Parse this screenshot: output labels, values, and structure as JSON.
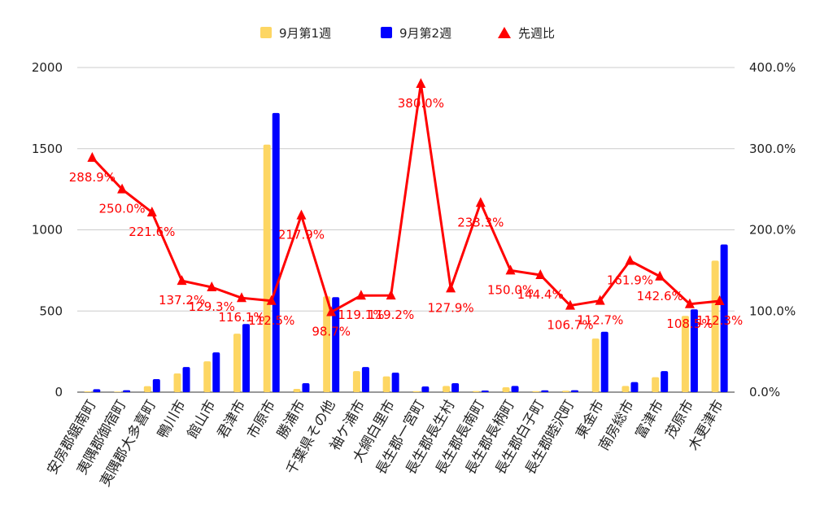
{
  "chart_data": {
    "type": "bar",
    "title": "",
    "xlabel": "",
    "ylabel": "",
    "y2label": "",
    "ylim": [
      0,
      2000
    ],
    "y2lim": [
      0,
      400
    ],
    "yticks": [
      "0",
      "500",
      "1000",
      "1500",
      "2000"
    ],
    "y2ticks": [
      "0.0%",
      "100.0%",
      "200.0%",
      "300.0%",
      "400.0%"
    ],
    "grid": true,
    "legend_position": "top",
    "categories": [
      "安房郡鋸南町",
      "夷隅郡御宿町",
      "夷隅郡大多喜町",
      "鴨川市",
      "館山市",
      "君津市",
      "市原市",
      "勝浦市",
      "千葉県その他",
      "袖ケ浦市",
      "大網白里市",
      "長生郡一宮町",
      "長生郡長生村",
      "長生郡長南町",
      "長生郡長柄町",
      "長生郡白子町",
      "長生郡睦沢町",
      "東金市",
      "南房総市",
      "富津市",
      "茂原市",
      "木更津市"
    ],
    "series": [
      {
        "name": "9月第1週",
        "kind": "bar",
        "axis": "left",
        "color": "#fdd663",
        "values": [
          5,
          4,
          37,
          115,
          190,
          360,
          1525,
          20,
          590,
          130,
          97,
          6,
          38,
          7,
          30,
          6,
          9,
          330,
          38,
          92,
          470,
          810
        ]
      },
      {
        "name": "9月第2週",
        "kind": "bar",
        "axis": "left",
        "color": "#0000ff",
        "values": [
          18,
          12,
          80,
          155,
          245,
          420,
          1720,
          55,
          585,
          155,
          120,
          35,
          55,
          10,
          38,
          11,
          12,
          372,
          62,
          130,
          510,
          910
        ]
      },
      {
        "name": "先週比",
        "kind": "line",
        "axis": "right",
        "color": "#ff0000",
        "marker": "triangle",
        "values": [
          288.9,
          250.0,
          221.6,
          137.2,
          129.3,
          116.1,
          112.5,
          217.9,
          98.7,
          119.1,
          119.2,
          380.0,
          127.9,
          233.3,
          150.0,
          144.4,
          106.7,
          112.7,
          161.9,
          142.6,
          108.5,
          112.3
        ],
        "labels": [
          "288.9%",
          "250.0%",
          "221.6%",
          "137.2%",
          "129.3%",
          "116.1%",
          "112.5%",
          "217.9%",
          "98.7%",
          "119.1%",
          "119.2%",
          "380.0%",
          "127.9%",
          "233.3%",
          "150.0%",
          "144.4%",
          "106.7%",
          "112.7%",
          "161.9%",
          "142.6%",
          "108.5%",
          "112.3%"
        ]
      }
    ]
  }
}
